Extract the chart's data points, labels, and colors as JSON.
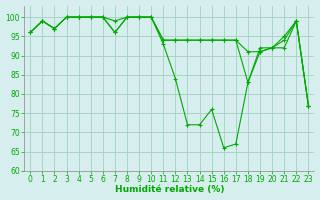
{
  "xlabel": "Humidité relative (%)",
  "xlim": [
    -0.5,
    23.5
  ],
  "ylim": [
    60,
    103
  ],
  "yticks": [
    60,
    65,
    70,
    75,
    80,
    85,
    90,
    95,
    100
  ],
  "xticks": [
    0,
    1,
    2,
    3,
    4,
    5,
    6,
    7,
    8,
    9,
    10,
    11,
    12,
    13,
    14,
    15,
    16,
    17,
    18,
    19,
    20,
    21,
    22,
    23
  ],
  "background_color": "#d6eeee",
  "grid_color": "#aad4c8",
  "line_color": "#00aa00",
  "series": [
    [
      96,
      99,
      97,
      100,
      100,
      100,
      100,
      99,
      100,
      100,
      100,
      93,
      84,
      72,
      72,
      76,
      66,
      67,
      83,
      92,
      92,
      94,
      99,
      77
    ],
    [
      96,
      99,
      97,
      100,
      100,
      100,
      100,
      96,
      100,
      100,
      100,
      94,
      94,
      94,
      94,
      94,
      94,
      94,
      91,
      91,
      92,
      92,
      99,
      77
    ],
    [
      96,
      99,
      97,
      100,
      100,
      100,
      100,
      96,
      100,
      100,
      100,
      94,
      94,
      94,
      94,
      94,
      94,
      94,
      83,
      91,
      92,
      95,
      99,
      77
    ]
  ],
  "figsize": [
    3.2,
    2.0
  ],
  "dpi": 100
}
